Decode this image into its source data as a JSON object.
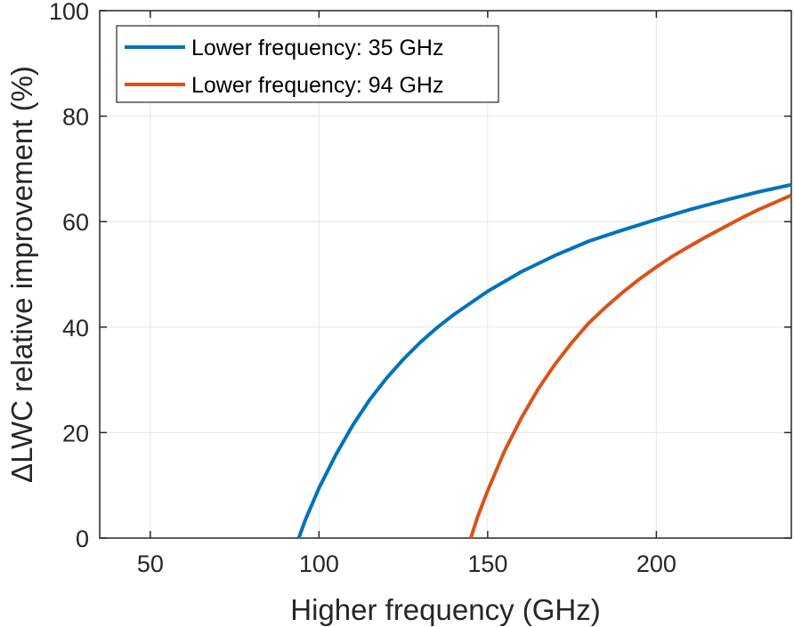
{
  "chart_data": {
    "type": "line",
    "title": "",
    "xlabel": "Higher frequency (GHz)",
    "ylabel": "ΔLWC relative improvement (%)",
    "xlim": [
      35,
      240
    ],
    "ylim": [
      0,
      100
    ],
    "xticks": [
      50,
      100,
      150,
      200
    ],
    "yticks": [
      0,
      20,
      40,
      60,
      80,
      100
    ],
    "grid": true,
    "legend_position": "top-left",
    "series": [
      {
        "name": "Lower frequency: 35 GHz",
        "color": "#0072BD",
        "x": [
          94,
          96,
          100,
          105,
          110,
          115,
          120,
          125,
          130,
          135,
          140,
          150,
          160,
          170,
          180,
          190,
          200,
          210,
          220,
          230,
          240
        ],
        "y": [
          0,
          3.5,
          9.5,
          15.8,
          21.4,
          26.2,
          30.3,
          33.9,
          37.1,
          39.9,
          42.4,
          46.8,
          50.5,
          53.6,
          56.3,
          58.4,
          60.4,
          62.3,
          64.0,
          65.6,
          67.0
        ]
      },
      {
        "name": "Lower frequency: 94 GHz",
        "color": "#D95319",
        "x": [
          145,
          147,
          150,
          155,
          160,
          165,
          170,
          175,
          180,
          185,
          190,
          195,
          200,
          205,
          210,
          215,
          220,
          225,
          230,
          235,
          240
        ],
        "y": [
          0,
          4.0,
          9.0,
          16.5,
          22.8,
          28.3,
          33.0,
          37.1,
          40.8,
          43.8,
          46.6,
          49.1,
          51.4,
          53.5,
          55.4,
          57.2,
          58.9,
          60.6,
          62.2,
          63.6,
          65.0
        ]
      }
    ]
  }
}
